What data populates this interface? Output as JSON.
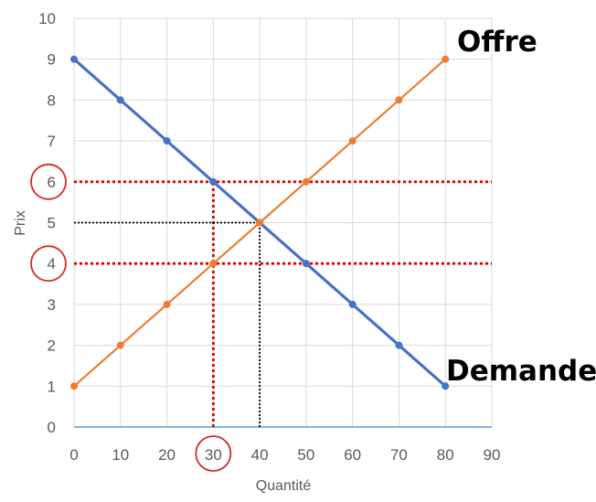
{
  "chart_data": {
    "type": "line",
    "xlabel": "Quantité",
    "ylabel": "Prix",
    "xlim": [
      0,
      90
    ],
    "ylim": [
      0,
      10
    ],
    "x_ticks": [
      "0",
      "10",
      "20",
      "30",
      "40",
      "50",
      "60",
      "70",
      "80",
      "90"
    ],
    "y_ticks": [
      "0",
      "1",
      "2",
      "3",
      "4",
      "5",
      "6",
      "7",
      "8",
      "9",
      "10"
    ],
    "grid": true,
    "series": [
      {
        "name": "Demande",
        "color": "#4472C4",
        "x": [
          0,
          10,
          20,
          30,
          40,
          50,
          60,
          70,
          80
        ],
        "y": [
          9,
          8,
          7,
          6,
          5,
          4,
          3,
          2,
          1
        ]
      },
      {
        "name": "Offre",
        "color": "#ED7D31",
        "x": [
          0,
          10,
          20,
          30,
          40,
          50,
          60,
          70,
          80
        ],
        "y": [
          1,
          2,
          3,
          4,
          5,
          6,
          7,
          8,
          9
        ]
      }
    ],
    "reference_lines": [
      {
        "orientation": "horizontal",
        "value": 6,
        "color": "#E00000"
      },
      {
        "orientation": "horizontal",
        "value": 4,
        "color": "#E00000"
      },
      {
        "orientation": "vertical",
        "value": 30,
        "from": 0,
        "to": 6,
        "color": "#E00000"
      },
      {
        "orientation": "horizontal",
        "value": 5,
        "from": 0,
        "to": 40,
        "color": "#000000"
      },
      {
        "orientation": "vertical",
        "value": 40,
        "from": 0,
        "to": 5,
        "color": "#000000"
      }
    ],
    "circled_ticks": [
      {
        "axis": "y",
        "value": "6"
      },
      {
        "axis": "y",
        "value": "4"
      },
      {
        "axis": "x",
        "value": "30"
      }
    ]
  }
}
